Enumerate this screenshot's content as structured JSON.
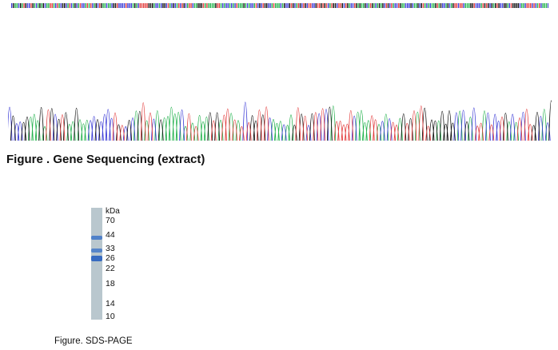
{
  "figure1": {
    "caption": "Figure . Gene Sequencing (extract)",
    "base_colors": {
      "A": "#22b14c",
      "C": "#3a3ad6",
      "G": "#111111",
      "T": "#e23b3b"
    }
  },
  "figure2": {
    "caption": "Figure. SDS-PAGE",
    "unit_label": "kDa",
    "markers": [
      "70",
      "44",
      "33",
      "26",
      "22",
      "18",
      "14",
      "10"
    ],
    "lane_color": "#b9c7ce",
    "band_color": "#3d74c8"
  }
}
